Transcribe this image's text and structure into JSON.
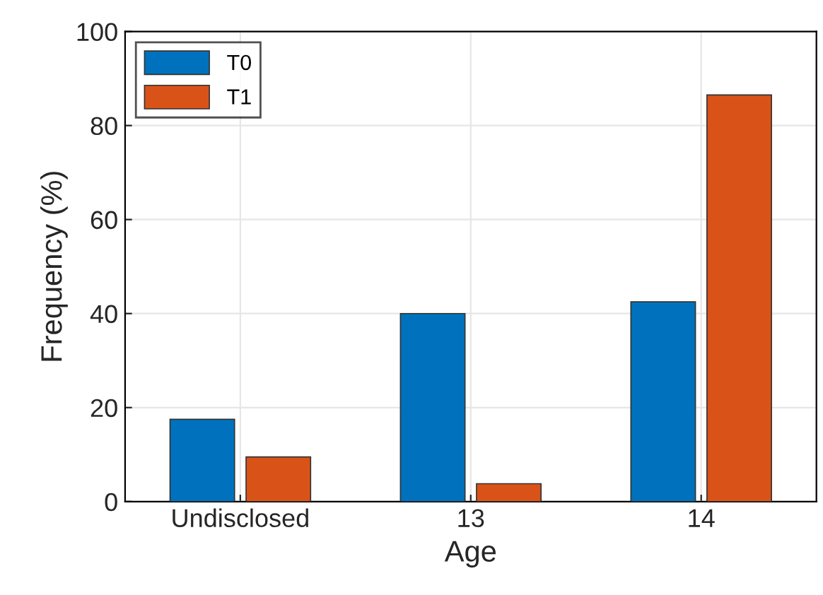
{
  "chart_data": {
    "type": "bar",
    "xlabel": "Age",
    "ylabel": "Frequency (%)",
    "categories": [
      "Undisclosed",
      "13",
      "14"
    ],
    "series": [
      {
        "name": "T0",
        "color": "#0072bd",
        "values": [
          17.5,
          40,
          42.5
        ]
      },
      {
        "name": "T1",
        "color": "#d95319",
        "values": [
          9.5,
          3.8,
          86.5
        ]
      }
    ],
    "ylim": [
      0,
      100
    ],
    "yticks": [
      0,
      20,
      40,
      60,
      80,
      100
    ],
    "grid": true,
    "legend": "top left"
  }
}
